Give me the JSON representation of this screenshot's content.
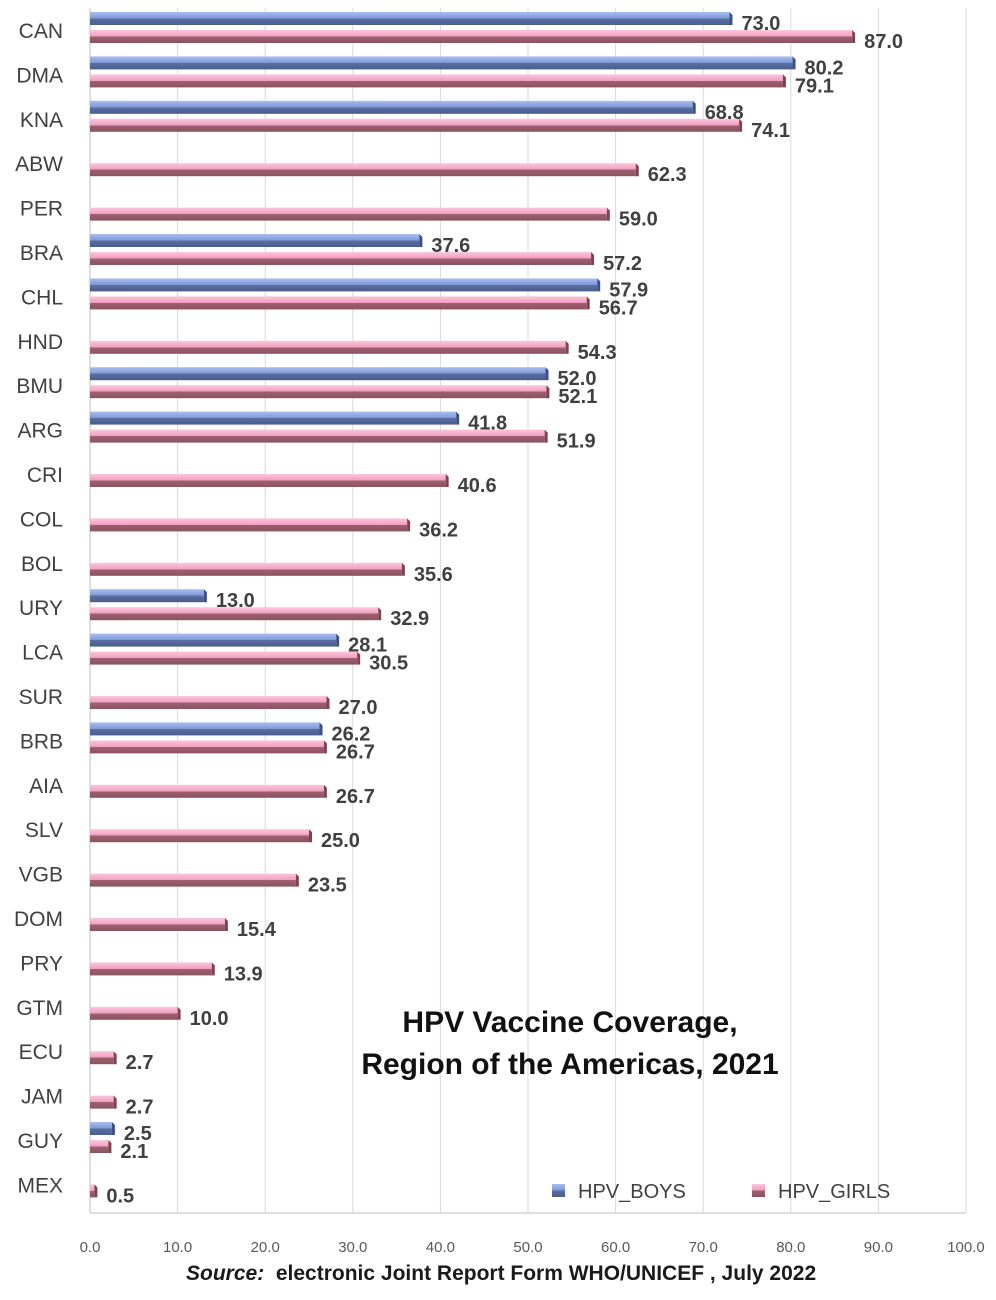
{
  "chart_data": {
    "type": "bar",
    "orientation": "horizontal",
    "title": [
      "HPV Vaccine Coverage,",
      "Region of the Americas, 2021"
    ],
    "xlim": [
      0,
      100
    ],
    "xticks": [
      "0.0",
      "10.0",
      "20.0",
      "30.0",
      "40.0",
      "50.0",
      "60.0",
      "70.0",
      "80.0",
      "90.0",
      "100.0"
    ],
    "grid": true,
    "legend": "bottom-right",
    "categories": [
      "CAN",
      "DMA",
      "KNA",
      "ABW",
      "PER",
      "BRA",
      "CHL",
      "HND",
      "BMU",
      "ARG",
      "CRI",
      "COL",
      "BOL",
      "URY",
      "LCA",
      "SUR",
      "BRB",
      "AIA",
      "SLV",
      "VGB",
      "DOM",
      "PRY",
      "GTM",
      "ECU",
      "JAM",
      "GUY",
      "MEX"
    ],
    "series": [
      {
        "name": "HPV_BOYS",
        "color": "#7e98d6",
        "values": [
          73.0,
          80.2,
          68.8,
          null,
          null,
          37.6,
          57.9,
          null,
          52.0,
          41.8,
          null,
          null,
          null,
          13.0,
          28.1,
          null,
          26.2,
          null,
          null,
          null,
          null,
          null,
          null,
          null,
          null,
          2.5,
          null
        ],
        "labels": [
          "73.0",
          "80.2",
          "68.8",
          null,
          null,
          "37.6",
          "57.9",
          null,
          "52.0",
          "41.8",
          null,
          null,
          null,
          "13.0",
          "28.1",
          null,
          "26.2",
          null,
          null,
          null,
          null,
          null,
          null,
          null,
          null,
          "2.5",
          null
        ]
      },
      {
        "name": "HPV_GIRLS",
        "color": "#e58fb0",
        "values": [
          87.0,
          79.1,
          74.1,
          62.3,
          59.0,
          57.2,
          56.7,
          54.3,
          52.1,
          51.9,
          40.6,
          36.2,
          35.6,
          32.9,
          30.5,
          27.0,
          26.7,
          26.7,
          25.0,
          23.5,
          15.4,
          13.9,
          10.0,
          2.7,
          2.7,
          2.1,
          0.5
        ],
        "labels": [
          "87.0",
          "79.1",
          "74.1",
          "62.3",
          "59.0",
          "57.2",
          "56.7",
          "54.3",
          "52.1",
          "51.9",
          "40.6",
          "36.2",
          "35.6",
          "32.9",
          "30.5",
          "27.0",
          "26.7",
          "26.7",
          "25.0",
          "23.5",
          "15.4",
          "13.9",
          "10.0",
          "2.7",
          "2.7",
          "2.1",
          "0.5"
        ]
      }
    ]
  },
  "source": {
    "prefix": "Source:",
    "text": "electronic Joint Report Form WHO/UNICEF , July 2022"
  }
}
